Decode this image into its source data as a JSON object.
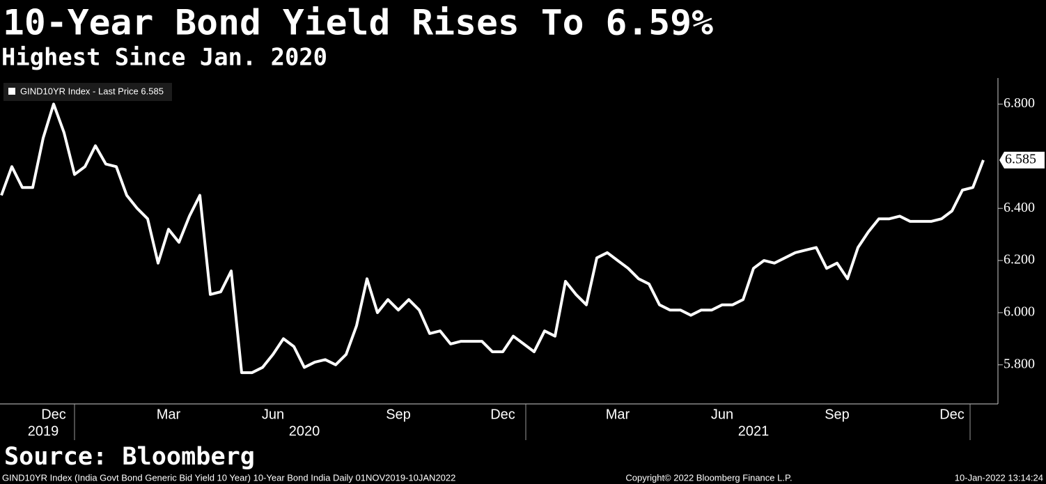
{
  "chart_data": {
    "type": "line",
    "title": "10-Year Bond Yield Rises To 6.59%",
    "subtitle": "Highest Since Jan. 2020",
    "source": "Source: Bloomberg",
    "footer_left": "GIND10YR Index (India Govt Bond Generic Bid Yield 10 Year) 10-Year Bond India  Daily 01NOV2019-10JAN2022",
    "footer_center": "Copyright© 2022 Bloomberg Finance L.P.",
    "footer_right": "10-Jan-2022 13:14:24",
    "categories": [
      null,
      null,
      null,
      null,
      null,
      "Dec",
      null,
      null,
      null,
      null,
      null,
      null,
      null,
      null,
      null,
      null,
      "Mar",
      null,
      null,
      null,
      null,
      null,
      null,
      null,
      null,
      null,
      "Jun",
      null,
      null,
      null,
      null,
      null,
      null,
      null,
      null,
      null,
      null,
      null,
      "Sep",
      null,
      null,
      null,
      null,
      null,
      null,
      null,
      null,
      null,
      "Dec",
      null,
      null,
      null,
      null,
      null,
      null,
      null,
      null,
      null,
      null,
      "Mar",
      null,
      null,
      null,
      null,
      null,
      null,
      null,
      null,
      null,
      "Jun",
      null,
      null,
      null,
      null,
      null,
      null,
      null,
      null,
      null,
      null,
      "Sep",
      null,
      null,
      null,
      null,
      null,
      null,
      null,
      null,
      null,
      null,
      "Dec",
      null,
      null,
      null
    ],
    "year_labels": [
      null,
      null,
      null,
      null,
      "2019",
      null,
      null,
      null,
      null,
      null,
      null,
      null,
      null,
      null,
      null,
      null,
      null,
      null,
      null,
      null,
      null,
      null,
      null,
      null,
      null,
      null,
      null,
      null,
      null,
      "2020",
      null,
      null,
      null,
      null,
      null,
      null,
      null,
      null,
      null,
      null,
      null,
      null,
      null,
      null,
      null,
      null,
      null,
      null,
      null,
      null,
      null,
      null,
      null,
      null,
      null,
      null,
      null,
      null,
      null,
      null,
      null,
      null,
      null,
      null,
      null,
      null,
      null,
      null,
      null,
      null,
      null,
      null,
      "2021",
      null,
      null,
      null,
      null,
      null,
      null,
      null,
      null,
      null,
      null,
      null,
      null,
      null,
      null,
      null,
      null,
      null,
      null,
      null,
      null,
      null,
      null
    ],
    "series": [
      {
        "name": "GIND10YR Index - Last Price 6.585",
        "color": "#ffffff",
        "values": [
          6.45,
          6.56,
          6.48,
          6.48,
          6.67,
          6.8,
          6.69,
          6.53,
          6.56,
          6.64,
          6.57,
          6.56,
          6.45,
          6.4,
          6.36,
          6.19,
          6.32,
          6.27,
          6.37,
          6.45,
          6.07,
          6.08,
          6.16,
          5.77,
          5.77,
          5.79,
          5.84,
          5.9,
          5.87,
          5.79,
          5.81,
          5.82,
          5.8,
          5.84,
          5.95,
          6.13,
          6.0,
          6.05,
          6.01,
          6.05,
          6.01,
          5.92,
          5.93,
          5.88,
          5.89,
          5.89,
          5.89,
          5.85,
          5.85,
          5.91,
          5.88,
          5.85,
          5.93,
          5.91,
          6.12,
          6.07,
          6.03,
          6.21,
          6.23,
          6.2,
          6.17,
          6.13,
          6.11,
          6.03,
          6.01,
          6.01,
          5.99,
          6.01,
          6.01,
          6.03,
          6.03,
          6.05,
          6.17,
          6.2,
          6.19,
          6.21,
          6.23,
          6.24,
          6.25,
          6.17,
          6.19,
          6.13,
          6.25,
          6.31,
          6.36,
          6.36,
          6.37,
          6.35,
          6.35,
          6.35,
          6.36,
          6.39,
          6.47,
          6.48,
          6.585
        ]
      }
    ],
    "ylim": [
      5.65,
      6.9
    ],
    "yticks": [
      {
        "value": 5.8,
        "label": "5.800"
      },
      {
        "value": 6.0,
        "label": "6.000"
      },
      {
        "value": 6.2,
        "label": "6.200"
      },
      {
        "value": 6.4,
        "label": "6.400"
      },
      {
        "value": 6.8,
        "label": "6.800"
      }
    ],
    "grid": false
  }
}
